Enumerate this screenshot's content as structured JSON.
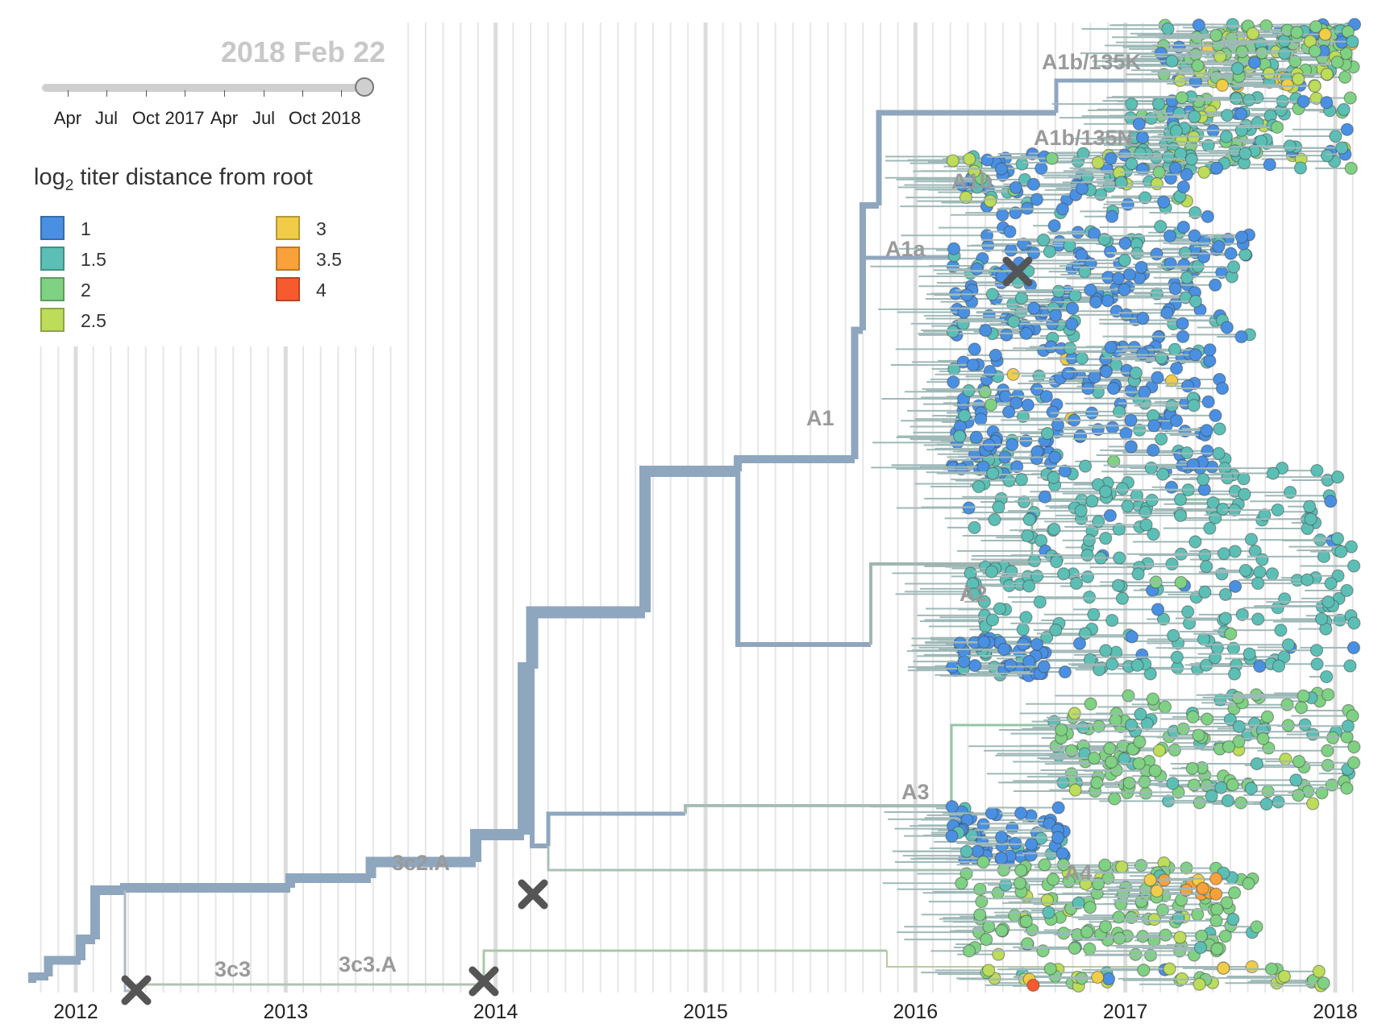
{
  "colors": {
    "backbone": "#8fa6bf",
    "gridline": "#e6e6e6",
    "gridline_major": "#dcdcdc",
    "marker": "#555555",
    "axis_text": "#222222",
    "clade_label": "#9a9a9a",
    "date_title": "#c8c8c8"
  },
  "date_title": "2018 Feb 22",
  "slider": {
    "ticks": [
      "Apr",
      "Jul",
      "Oct",
      "2017",
      "Apr",
      "Jul",
      "Oct",
      "2018"
    ]
  },
  "legend": {
    "title_prefix": "log",
    "title_subscript": "2",
    "title_suffix": " titer distance from root",
    "items": [
      {
        "label": "1",
        "color": "#4a90e2"
      },
      {
        "label": "1.5",
        "color": "#5cbfb5"
      },
      {
        "label": "2",
        "color": "#7fd183"
      },
      {
        "label": "2.5",
        "color": "#bcdc5a"
      },
      {
        "label": "3",
        "color": "#f0cc48"
      },
      {
        "label": "3.5",
        "color": "#f9a13a"
      },
      {
        "label": "4",
        "color": "#f75a2e"
      }
    ]
  },
  "chart_data": {
    "type": "tree",
    "x_axis_ticks": [
      "2012",
      "2013",
      "2014",
      "2015",
      "2016",
      "2017",
      "2018"
    ],
    "xlim": [
      2011.84,
      2018.1
    ],
    "clade_labels": [
      "A1b/135K",
      "A1b/135N",
      "A1b",
      "A1a",
      "A1",
      "A2",
      "A3",
      "A4",
      "3c2.A",
      "3c3",
      "3c3.A"
    ],
    "grid": true
  }
}
